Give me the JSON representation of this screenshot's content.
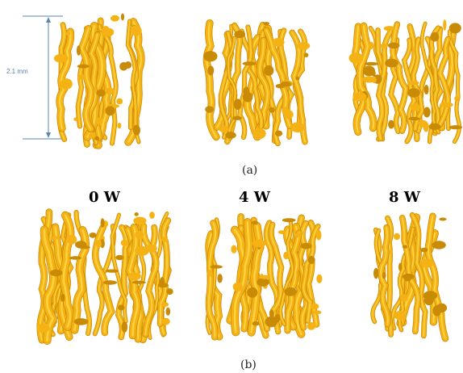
{
  "figure": {
    "scale_bar_label": "2.1 mm",
    "caption_a": "(a)",
    "caption_b": "(b)",
    "power_labels": [
      "0 W",
      "4 W",
      "8 W"
    ],
    "colors": {
      "scaffold_fill": "#f4b214",
      "scaffold_highlight": "#ffd94a",
      "scaffold_shadow": "#c98a06",
      "scale_bar": "#5a86b4"
    }
  }
}
